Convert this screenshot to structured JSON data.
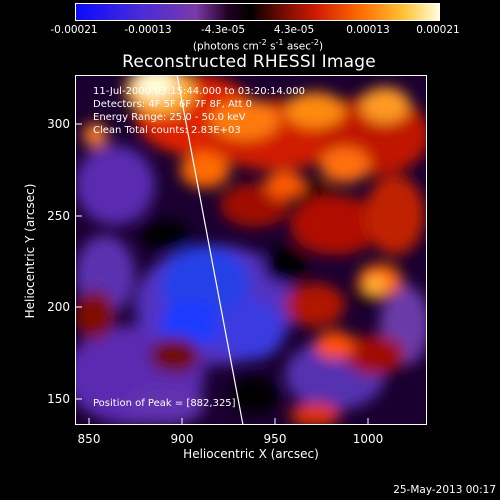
{
  "colorbar": {
    "ticks": [
      "-0.00021",
      "-0.00013",
      "-4.3e-05",
      "4.3e-05",
      "0.00013",
      "0.00021"
    ],
    "units_prefix": "(photons cm",
    "units_exp1": "-2",
    "units_mid": " s",
    "units_exp2": "-1",
    "units_mid2": " asec",
    "units_exp3": "-2",
    "units_suffix": ")"
  },
  "title": "Reconstructed RHESSI Image",
  "annotations": {
    "time": "11-Jul-2000 03:15:44.000 to 03:20:14.000",
    "detectors": "Detectors: 4F 5F 6F 7F 8F, Att 0",
    "energy": "Energy Range: 25.0 - 50.0 keV",
    "clean": "Clean  Total counts: 2.83E+03",
    "peak": "Position of Peak = [882,325]"
  },
  "axes": {
    "xlabel": "Heliocentric X (arcsec)",
    "ylabel": "Heliocentric Y (arcsec)",
    "xticks": [
      "850",
      "900",
      "950",
      "1000"
    ],
    "yticks": [
      "150",
      "200",
      "250",
      "300"
    ],
    "xrange": [
      840,
      1030
    ],
    "yrange": [
      135,
      325
    ]
  },
  "datestamp": "25-May-2013 00:17",
  "colors": {
    "cmap_min": "#0000ff",
    "cmap_max": "#ffffe0",
    "limb_line": "#ffffff"
  }
}
